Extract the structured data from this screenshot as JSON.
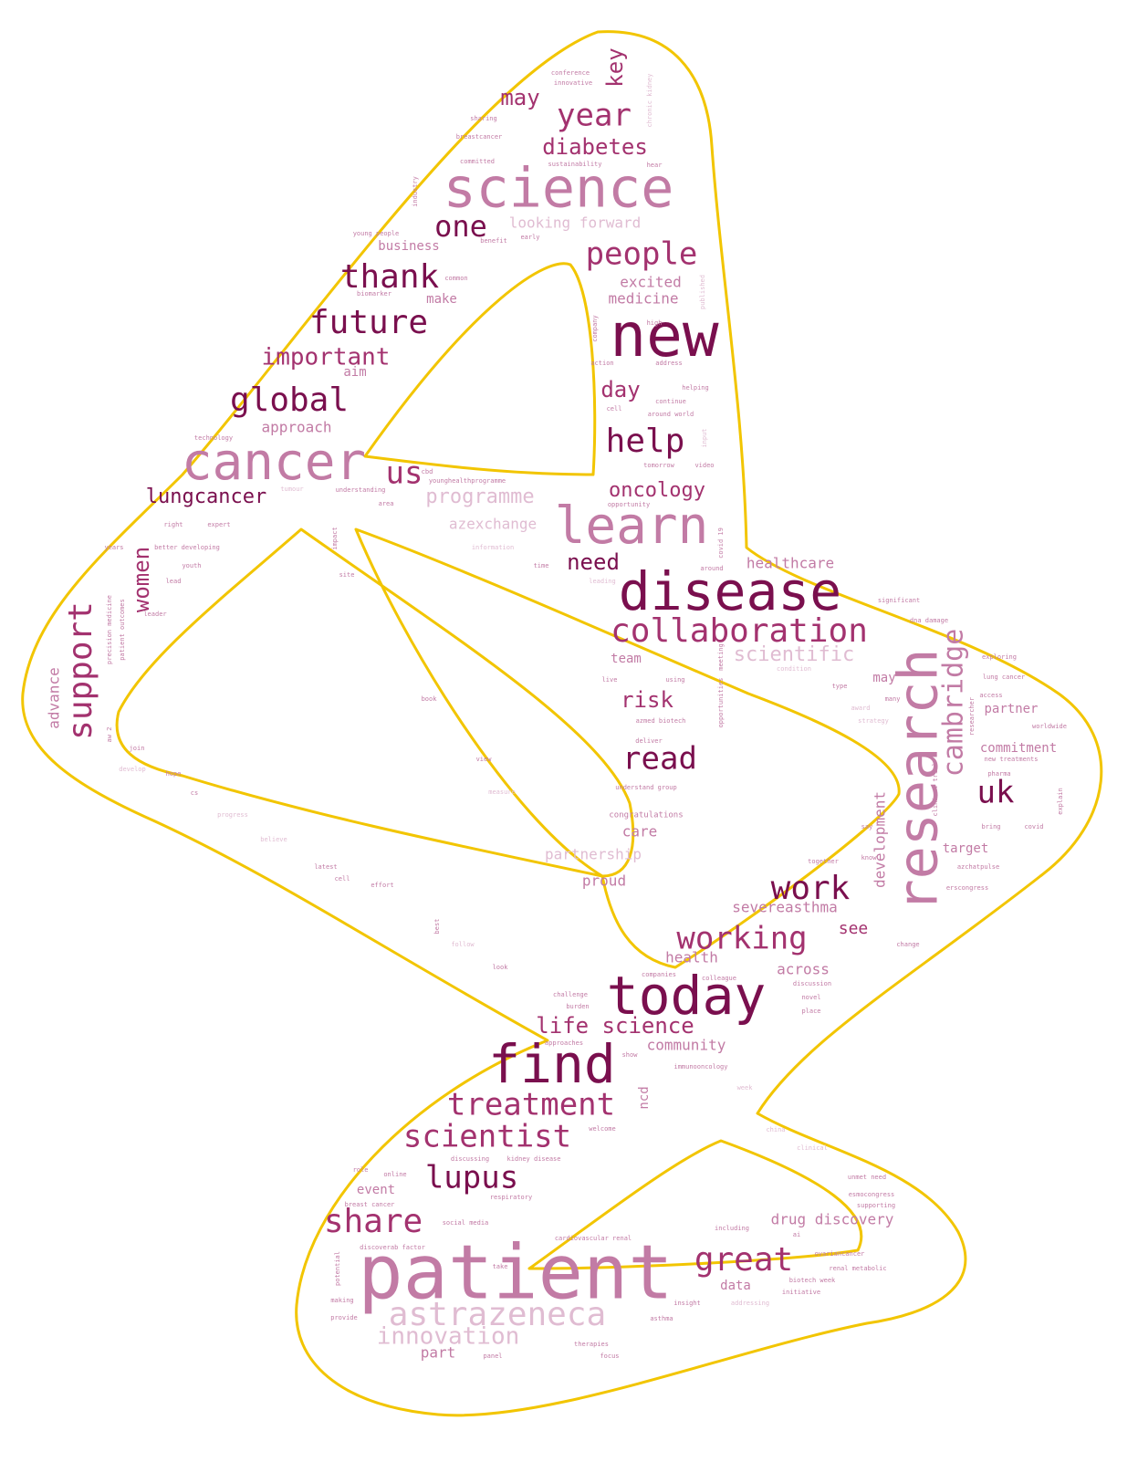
{
  "palette": {
    "outline": "#f2c500",
    "dark": "#7a0f4e",
    "mid": "#a3326f",
    "light": "#c27ba5",
    "pale": "#e0bcd2"
  },
  "words": {
    "science": "science",
    "patient": "patient",
    "new": "new",
    "disease": "disease",
    "research": "research",
    "learn": "learn",
    "cancer": "cancer",
    "today": "today",
    "find": "find",
    "astrazeneca": "astrazeneca",
    "collaboration": "collaboration",
    "cambridge": "cambridge",
    "support": "support",
    "thank": "thank",
    "future": "future",
    "global": "global",
    "help": "help",
    "people": "people",
    "year": "year",
    "one": "one",
    "work": "work",
    "working": "working",
    "great": "great",
    "share": "share",
    "lupus": "lupus",
    "scientist": "scientist",
    "treatment": "treatment",
    "us": "us",
    "uk": "uk",
    "read": "read",
    "innovation": "innovation",
    "lungcancer": "lungcancer",
    "oncology": "oncology",
    "programme": "programme",
    "diabetes": "diabetes",
    "important": "important",
    "life_science": "life science",
    "may": "may",
    "key": "key",
    "women": "women",
    "need": "need",
    "risk": "risk",
    "day": "day",
    "scientific": "scientific",
    "excited": "excited",
    "medicine": "medicine",
    "looking_forward": "looking forward",
    "business": "business",
    "make": "make",
    "approach": "approach",
    "aim": "aim",
    "azexchange": "azexchange",
    "healthcare": "healthcare",
    "team": "team",
    "advance": "advance",
    "development": "development",
    "severeasthma": "severeasthma",
    "see": "see",
    "health": "health",
    "across": "across",
    "community": "community",
    "partnership": "partnership",
    "proud": "proud",
    "care": "care",
    "commitment": "commitment",
    "partner": "partner",
    "target": "target",
    "drug_discovery": "drug discovery",
    "event": "event",
    "data": "data",
    "part": "part",
    "ncd": "ncd",
    "may2": "may",
    "congratulations": "congratulations",
    "understand_group": "understand group",
    "conference": "conference",
    "innovative": "innovative",
    "sharing": "sharing",
    "breastcancer": "breastcancer",
    "committed": "committed",
    "sustainability": "sustainability",
    "hear": "hear",
    "chronic_kidney": "chronic kidney",
    "industry": "industry",
    "young_people": "young people",
    "early": "early",
    "benefit": "benefit",
    "common": "common",
    "biomarker": "biomarker",
    "published": "published",
    "company": "company",
    "action": "action",
    "address": "address",
    "high": "high",
    "helping": "helping",
    "continue": "continue",
    "around_world": "around world",
    "cell": "cell",
    "input": "input",
    "video": "video",
    "tomorrow": "tomorrow",
    "opportunity": "opportunity",
    "technology": "technology",
    "understanding": "understanding",
    "area": "area",
    "younghealthprogramme": "younghealthprogramme",
    "tumour": "tumour",
    "right": "right",
    "expert": "expert",
    "better_developing": "better developing",
    "youth": "youth",
    "lead": "lead",
    "leader": "leader",
    "precision_medicine": "precision medicine",
    "patient_outcomes": "patient outcomes",
    "years": "years",
    "information": "information",
    "time": "time",
    "around": "around",
    "leading": "leading",
    "significant": "significant",
    "dna_damage": "dna damage",
    "exploring": "exploring",
    "lung_cancer": "lung cancer",
    "condition": "condition",
    "meeting": "meeting",
    "using": "using",
    "live": "live",
    "azmed_biotech": "azmed biotech",
    "opportunities": "opportunities",
    "deliver": "deliver",
    "type": "type",
    "many": "many",
    "award": "award",
    "strategy": "strategy",
    "worldwide": "worldwide",
    "new_treatments": "new treatments",
    "pharma": "pharma",
    "explain": "explain",
    "bring": "bring",
    "covid": "covid",
    "clinical_trial": "clinical trial",
    "say": "say",
    "know": "know",
    "together": "together",
    "azchatpulse": "azchatpulse",
    "ersscongress": "erscongress",
    "change": "change",
    "companies": "companies",
    "colleague": "colleague",
    "discussion": "discussion",
    "novel": "novel",
    "place": "place",
    "challenge": "challenge",
    "burden": "burden",
    "approaches": "approaches",
    "show": "show",
    "immunooncology": "immunooncology",
    "week": "week",
    "unmet_need": "unmet need",
    "esmocongress": "esmocongress",
    "supporting": "supporting",
    "including": "including",
    "ai": "ai",
    "cardiovascular_renal": "cardiovascular renal",
    "ovariancancer": "ovariancancer",
    "renal_metabolic": "renal metabolic",
    "biotech_week": "biotech week",
    "initiative": "initiative",
    "insight": "insight",
    "addressing": "addressing",
    "asthma": "asthma",
    "therapies": "therapies",
    "panel": "panel",
    "focus": "focus",
    "provide": "provide",
    "making": "making",
    "potential": "potential",
    "take": "take",
    "discoverab_factor": "discoverab factor",
    "social_media": "social media",
    "breast_cancer": "breast cancer",
    "respiratory": "respiratory",
    "online": "online",
    "role": "role",
    "discussing": "discussing",
    "kidney_disease": "kidney disease",
    "welcome": "welcome",
    "china": "china",
    "clinical": "clinical",
    "access": "access",
    "join": "join",
    "develop": "develop",
    "hope": "hope",
    "progress": "progress",
    "believe": "believe",
    "latest": "latest",
    "cell2": "cell",
    "effort": "effort",
    "follow": "follow",
    "best": "best",
    "look": "look",
    "book": "book",
    "view": "view",
    "measure": "measure",
    "site": "site",
    "impact": "impact",
    "covid19": "covid 19",
    "cs": "cs",
    "cbd": "cbd",
    "aw_2": "aw 2",
    "researcher": "researcher"
  }
}
